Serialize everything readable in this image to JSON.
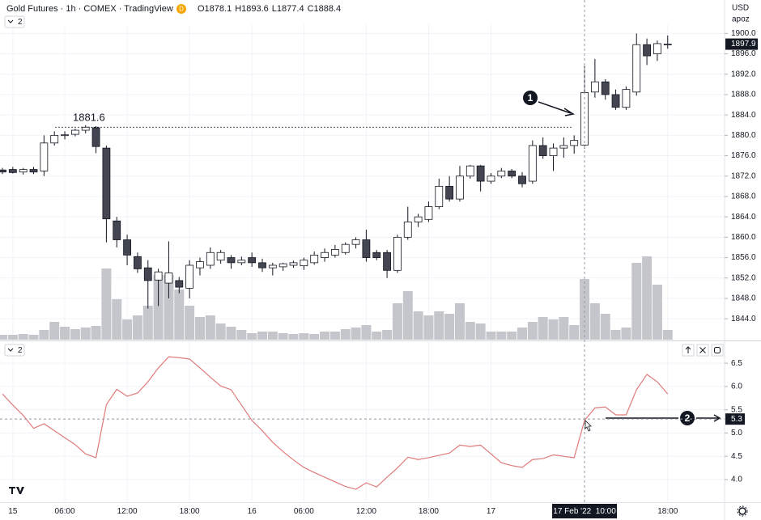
{
  "header": {
    "symbol": "Gold Futures · 1h · COMEX · TradingView",
    "badge": "D",
    "ohlc": [
      "O1878.1",
      "H1893.6",
      "L1877.4",
      "C1888.4"
    ]
  },
  "scale_controls": {
    "currency": "USD",
    "mode": "apoz"
  },
  "collapse_labels": [
    "2",
    "2"
  ],
  "chart_data": [
    {
      "type": "candlestick",
      "categories": [
        null,
        "15",
        null,
        null,
        null,
        null,
        "06:00",
        null,
        null,
        null,
        null,
        null,
        "12:00",
        null,
        null,
        null,
        null,
        null,
        "18:00",
        null,
        null,
        null,
        null,
        null,
        "16",
        null,
        null,
        null,
        null,
        "06:00",
        null,
        null,
        null,
        null,
        null,
        "12:00",
        null,
        null,
        null,
        null,
        null,
        "18:00",
        null,
        null,
        null,
        null,
        null,
        "17",
        null,
        null,
        null,
        null,
        null,
        null,
        null,
        null,
        "17 Feb '22  10:00",
        null,
        null,
        null,
        null,
        null,
        null,
        null,
        "18:00"
      ],
      "open": [
        1873.2,
        1873.3,
        1872.8,
        1873.3,
        1873.0,
        1878.5,
        1880.0,
        1880.2,
        1881.0,
        1881.5,
        1877.5,
        1863.2,
        1859.5,
        1856.2,
        1854.0,
        1851.6,
        1851.0,
        1851.5,
        1850.0,
        1854.0,
        1854.5,
        1855.5,
        1856.0,
        1855.0,
        1856.0,
        1855.0,
        1854.0,
        1854.2,
        1854.5,
        1854.4,
        1855.0,
        1856.0,
        1856.5,
        1857.0,
        1858.6,
        1859.5,
        1857.0,
        1857.0,
        1853.5,
        1860.0,
        1863.0,
        1863.5,
        1866.0,
        1870.0,
        1867.5,
        1872.0,
        1874.0,
        1871.0,
        1872.0,
        1873.0,
        1872.0,
        1871.0,
        1878.0,
        1876.0,
        1877.5,
        1878.0,
        1878.1,
        1888.5,
        1890.5,
        1888.0,
        1885.5,
        1888.5,
        1897.8,
        1896.0,
        1897.8
      ],
      "high": [
        1873.6,
        1873.8,
        1873.6,
        1873.8,
        1880.0,
        1880.8,
        1880.8,
        1881.3,
        1882.0,
        1881.8,
        1878.0,
        1864.0,
        1860.5,
        1857.0,
        1855.5,
        1853.8,
        1859.2,
        1852.2,
        1855.5,
        1856.0,
        1858.0,
        1857.5,
        1856.5,
        1856.2,
        1857.0,
        1855.8,
        1855.0,
        1855.0,
        1855.4,
        1856.0,
        1857.2,
        1857.8,
        1858.5,
        1859.0,
        1860.0,
        1861.5,
        1857.5,
        1857.5,
        1860.5,
        1866.0,
        1864.6,
        1867.0,
        1871.5,
        1872.0,
        1874.0,
        1874.2,
        1874.2,
        1872.6,
        1873.6,
        1873.4,
        1872.8,
        1879.0,
        1879.6,
        1878.4,
        1879.6,
        1880.0,
        1893.6,
        1895.0,
        1891.0,
        1889.0,
        1889.6,
        1900.0,
        1899.0,
        1898.6,
        1899.6
      ],
      "low": [
        1872.4,
        1872.5,
        1872.3,
        1872.4,
        1872.0,
        1878.0,
        1879.2,
        1879.8,
        1880.4,
        1876.5,
        1859.0,
        1858.0,
        1854.5,
        1853.0,
        1846.0,
        1846.5,
        1848.0,
        1849.0,
        1848.0,
        1852.5,
        1853.8,
        1854.8,
        1853.8,
        1854.5,
        1854.2,
        1853.2,
        1852.5,
        1853.4,
        1854.0,
        1853.6,
        1854.6,
        1855.2,
        1856.0,
        1856.6,
        1857.8,
        1855.2,
        1855.5,
        1852.0,
        1853.0,
        1859.5,
        1862.0,
        1863.0,
        1865.5,
        1867.0,
        1867.0,
        1871.5,
        1869.0,
        1870.5,
        1871.6,
        1871.6,
        1869.8,
        1870.5,
        1875.4,
        1873.0,
        1875.6,
        1876.4,
        1877.4,
        1887.4,
        1887.0,
        1885.0,
        1885.0,
        1887.8,
        1893.8,
        1894.6,
        1897.0
      ],
      "close": [
        1872.8,
        1872.7,
        1873.3,
        1872.8,
        1878.5,
        1880.0,
        1880.1,
        1881.0,
        1881.6,
        1877.8,
        1863.6,
        1859.5,
        1856.5,
        1853.8,
        1851.5,
        1853.2,
        1853.0,
        1850.2,
        1854.5,
        1855.2,
        1857.0,
        1857.0,
        1855.0,
        1855.5,
        1855.0,
        1854.0,
        1854.5,
        1854.8,
        1855.0,
        1855.5,
        1856.5,
        1857.0,
        1857.6,
        1858.6,
        1859.5,
        1856.0,
        1856.0,
        1853.5,
        1860.0,
        1863.0,
        1864.0,
        1866.0,
        1870.0,
        1867.5,
        1872.0,
        1874.0,
        1871.0,
        1872.0,
        1873.0,
        1872.0,
        1870.5,
        1878.0,
        1876.0,
        1877.5,
        1878.0,
        1879.0,
        1888.4,
        1890.5,
        1888.0,
        1885.5,
        1889.0,
        1897.8,
        1895.6,
        1898.0,
        1897.9
      ],
      "up_color": "#ffffff",
      "down_color": "#434651",
      "wick_color": "#131722",
      "ylim": [
        1839.9,
        1901.8
      ],
      "yticks": [
        {
          "value": 1844,
          "label": "1844.0"
        },
        {
          "value": 1848,
          "label": "1848.0"
        },
        {
          "value": 1852,
          "label": "1852.0"
        },
        {
          "value": 1856,
          "label": "1856.0"
        },
        {
          "value": 1860,
          "label": "1860.0"
        },
        {
          "value": 1864,
          "label": "1864.0"
        },
        {
          "value": 1868,
          "label": "1868.0"
        },
        {
          "value": 1872,
          "label": "1872.0"
        },
        {
          "value": 1876,
          "label": "1876.0"
        },
        {
          "value": 1880,
          "label": "1880.0"
        },
        {
          "value": 1884,
          "label": "1884.0"
        },
        {
          "value": 1888,
          "label": "1888.0"
        },
        {
          "value": 1892,
          "label": "1892.0"
        },
        {
          "value": 1896,
          "label": "1896.0"
        },
        {
          "value": 1900,
          "label": "1900.0"
        }
      ],
      "level_line": 1881.6,
      "annotations": [
        "1",
        "2"
      ],
      "grid": true
    },
    {
      "type": "bar",
      "values": [
        6,
        6,
        7,
        6,
        12,
        22,
        16,
        13,
        15,
        17,
        88,
        50,
        25,
        30,
        42,
        80,
        80,
        62,
        42,
        28,
        30,
        20,
        16,
        12,
        8,
        10,
        10,
        8,
        7,
        8,
        7,
        10,
        10,
        13,
        15,
        18,
        10,
        12,
        45,
        60,
        35,
        30,
        35,
        32,
        45,
        22,
        20,
        10,
        10,
        10,
        15,
        22,
        28,
        25,
        28,
        18,
        75,
        45,
        32,
        12,
        15,
        95,
        103,
        68,
        12
      ],
      "color": "#c5c6cb",
      "ylim": [
        0,
        390
      ]
    },
    {
      "type": "line",
      "values": [
        5.84,
        5.6,
        5.38,
        5.1,
        5.2,
        5.05,
        4.9,
        4.75,
        4.55,
        4.47,
        5.61,
        5.94,
        5.79,
        5.86,
        6.1,
        6.4,
        6.64,
        6.62,
        6.59,
        6.4,
        6.2,
        6.01,
        5.93,
        5.6,
        5.27,
        5.05,
        4.8,
        4.6,
        4.42,
        4.26,
        4.15,
        4.05,
        3.95,
        3.85,
        3.79,
        3.93,
        3.84,
        4.05,
        4.25,
        4.48,
        4.43,
        4.47,
        4.52,
        4.57,
        4.74,
        4.71,
        4.74,
        4.55,
        4.36,
        4.3,
        4.26,
        4.43,
        4.45,
        4.53,
        4.5,
        4.47,
        5.27,
        5.54,
        5.56,
        5.39,
        5.39,
        5.93,
        6.26,
        6.1,
        5.84
      ],
      "color": "#e07a7a",
      "ylim": [
        3.53,
        6.92
      ],
      "yticks": [
        {
          "value": 4,
          "label": "4.0"
        },
        4.5,
        {
          "value": 5,
          "label": "5.0"
        },
        5.5,
        {
          "value": 6,
          "label": "6.0"
        },
        6.5
      ],
      "crosshair_value": 5.3,
      "grid": true
    }
  ]
}
